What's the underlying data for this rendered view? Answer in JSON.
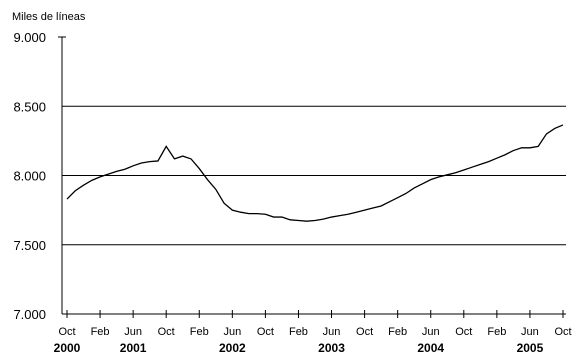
{
  "chart_data": {
    "type": "line",
    "ylabel": "Miles de líneas",
    "ylim": [
      7000,
      9000
    ],
    "yticks": [
      {
        "value": 7000,
        "label": "7.000"
      },
      {
        "value": 7500,
        "label": "7.500"
      },
      {
        "value": 8000,
        "label": "8.000"
      },
      {
        "value": 8500,
        "label": "8.500"
      },
      {
        "value": 9000,
        "label": "9.000"
      }
    ],
    "grid_lines": [
      7500,
      8000,
      8500
    ],
    "xticks": [
      "Oct",
      "Feb",
      "Jun",
      "Oct",
      "Feb",
      "Jun",
      "Oct",
      "Feb",
      "Jun",
      "Oct",
      "Feb",
      "Jun",
      "Oct",
      "Feb",
      "Jun",
      "Oct"
    ],
    "year_labels": [
      {
        "label": "2000",
        "index": 0
      },
      {
        "label": "2001",
        "index": 2
      },
      {
        "label": "2002",
        "index": 5
      },
      {
        "label": "2003",
        "index": 8
      },
      {
        "label": "2004",
        "index": 11
      },
      {
        "label": "2005",
        "index": 14
      }
    ],
    "x": [
      "2000-10",
      "2000-11",
      "2000-12",
      "2001-01",
      "2001-02",
      "2001-03",
      "2001-04",
      "2001-05",
      "2001-06",
      "2001-07",
      "2001-08",
      "2001-09",
      "2001-10",
      "2001-11",
      "2001-12",
      "2002-01",
      "2002-02",
      "2002-03",
      "2002-04",
      "2002-05",
      "2002-06",
      "2002-07",
      "2002-08",
      "2002-09",
      "2002-10",
      "2002-11",
      "2002-12",
      "2003-01",
      "2003-02",
      "2003-03",
      "2003-04",
      "2003-05",
      "2003-06",
      "2003-07",
      "2003-08",
      "2003-09",
      "2003-10",
      "2003-11",
      "2003-12",
      "2004-01",
      "2004-02",
      "2004-03",
      "2004-04",
      "2004-05",
      "2004-06",
      "2004-07",
      "2004-08",
      "2004-09",
      "2004-10",
      "2004-11",
      "2004-12",
      "2005-01",
      "2005-02",
      "2005-03",
      "2005-04",
      "2005-05",
      "2005-06",
      "2005-07",
      "2005-08",
      "2005-09",
      "2005-10"
    ],
    "series": [
      {
        "values": [
          7830,
          7890,
          7930,
          7965,
          7990,
          8010,
          8030,
          8045,
          8070,
          8090,
          8100,
          8105,
          8210,
          8120,
          8140,
          8120,
          8050,
          7970,
          7900,
          7800,
          7750,
          7735,
          7725,
          7725,
          7720,
          7700,
          7700,
          7680,
          7675,
          7670,
          7675,
          7685,
          7700,
          7710,
          7720,
          7735,
          7750,
          7765,
          7780,
          7810,
          7840,
          7870,
          7910,
          7940,
          7970,
          7990,
          8005,
          8020,
          8040,
          8060,
          8080,
          8100,
          8125,
          8150,
          8180,
          8200,
          8200,
          8210,
          8300,
          8340,
          8365
        ],
        "color": "#000000"
      }
    ]
  }
}
